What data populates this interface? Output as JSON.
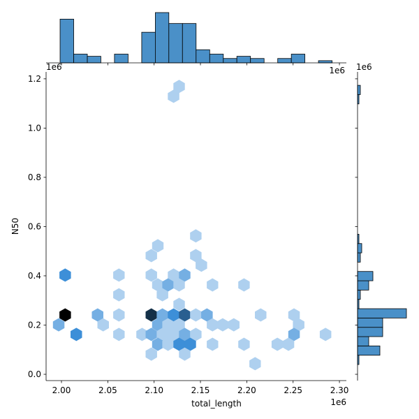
{
  "chart_data": {
    "type": "hexbin_joint",
    "xlabel": "total_length",
    "ylabel": "N50",
    "x_offset_label": "1e6",
    "y_offset_label": "1e6",
    "xlim": [
      1.9834,
      2.3075
    ],
    "ylim": [
      -0.0255,
      1.228
    ],
    "xticks": [
      {
        "value": 2.0,
        "label": "2.00"
      },
      2.05,
      {
        "value": 2.1,
        "label": "2.10"
      },
      2.15,
      {
        "value": 2.2,
        "label": "2.20"
      },
      2.25,
      {
        "value": 2.3,
        "label": "2.30"
      }
    ],
    "yticks": [
      {
        "value": 0.0,
        "label": "0.0"
      },
      0.2,
      0.4,
      0.6,
      0.8,
      {
        "value": 1.0,
        "label": "1.0"
      },
      1.2
    ],
    "color": "#4a90c8",
    "cmap": [
      "#e6f0fa",
      "#3d8fd8",
      "#000000"
    ],
    "count_max": 6,
    "hexes": [
      {
        "x": 2.127,
        "y": 1.169,
        "count": 1
      },
      {
        "x": 2.121,
        "y": 1.129,
        "count": 1
      },
      {
        "x": 2.145,
        "y": 0.562,
        "count": 1
      },
      {
        "x": 2.104,
        "y": 0.522,
        "count": 1
      },
      {
        "x": 2.145,
        "y": 0.482,
        "count": 1
      },
      {
        "x": 2.097,
        "y": 0.482,
        "count": 1
      },
      {
        "x": 2.151,
        "y": 0.443,
        "count": 1
      },
      {
        "x": 2.004,
        "y": 0.403,
        "count": 3
      },
      {
        "x": 2.062,
        "y": 0.403,
        "count": 1
      },
      {
        "x": 2.097,
        "y": 0.403,
        "count": 1
      },
      {
        "x": 2.121,
        "y": 0.403,
        "count": 1
      },
      {
        "x": 2.133,
        "y": 0.403,
        "count": 2
      },
      {
        "x": 2.104,
        "y": 0.363,
        "count": 1
      },
      {
        "x": 2.115,
        "y": 0.363,
        "count": 2
      },
      {
        "x": 2.127,
        "y": 0.363,
        "count": 1
      },
      {
        "x": 2.163,
        "y": 0.363,
        "count": 1
      },
      {
        "x": 2.197,
        "y": 0.363,
        "count": 1
      },
      {
        "x": 2.109,
        "y": 0.323,
        "count": 1
      },
      {
        "x": 2.062,
        "y": 0.323,
        "count": 1
      },
      {
        "x": 2.127,
        "y": 0.284,
        "count": 1
      },
      {
        "x": 2.004,
        "y": 0.241,
        "count": 6
      },
      {
        "x": 2.039,
        "y": 0.241,
        "count": 2
      },
      {
        "x": 2.062,
        "y": 0.241,
        "count": 1
      },
      {
        "x": 2.097,
        "y": 0.241,
        "count": 5
      },
      {
        "x": 2.109,
        "y": 0.241,
        "count": 2
      },
      {
        "x": 2.121,
        "y": 0.241,
        "count": 3
      },
      {
        "x": 2.133,
        "y": 0.241,
        "count": 4
      },
      {
        "x": 2.145,
        "y": 0.241,
        "count": 1
      },
      {
        "x": 2.157,
        "y": 0.241,
        "count": 2
      },
      {
        "x": 2.215,
        "y": 0.241,
        "count": 1
      },
      {
        "x": 2.251,
        "y": 0.241,
        "count": 1
      },
      {
        "x": 1.997,
        "y": 0.201,
        "count": 2
      },
      {
        "x": 2.045,
        "y": 0.201,
        "count": 1
      },
      {
        "x": 2.104,
        "y": 0.201,
        "count": 2
      },
      {
        "x": 2.115,
        "y": 0.201,
        "count": 1
      },
      {
        "x": 2.127,
        "y": 0.201,
        "count": 1
      },
      {
        "x": 2.163,
        "y": 0.201,
        "count": 1
      },
      {
        "x": 2.174,
        "y": 0.201,
        "count": 1
      },
      {
        "x": 2.186,
        "y": 0.201,
        "count": 1
      },
      {
        "x": 2.256,
        "y": 0.201,
        "count": 1
      },
      {
        "x": 2.016,
        "y": 0.162,
        "count": 3
      },
      {
        "x": 2.062,
        "y": 0.162,
        "count": 1
      },
      {
        "x": 2.087,
        "y": 0.162,
        "count": 1
      },
      {
        "x": 2.097,
        "y": 0.162,
        "count": 2
      },
      {
        "x": 2.109,
        "y": 0.162,
        "count": 1
      },
      {
        "x": 2.121,
        "y": 0.162,
        "count": 1
      },
      {
        "x": 2.133,
        "y": 0.162,
        "count": 2
      },
      {
        "x": 2.145,
        "y": 0.162,
        "count": 1
      },
      {
        "x": 2.251,
        "y": 0.162,
        "count": 2
      },
      {
        "x": 2.285,
        "y": 0.162,
        "count": 1
      },
      {
        "x": 2.104,
        "y": 0.122,
        "count": 2
      },
      {
        "x": 2.115,
        "y": 0.122,
        "count": 1
      },
      {
        "x": 2.127,
        "y": 0.122,
        "count": 3
      },
      {
        "x": 2.139,
        "y": 0.122,
        "count": 3
      },
      {
        "x": 2.163,
        "y": 0.122,
        "count": 1
      },
      {
        "x": 2.197,
        "y": 0.122,
        "count": 1
      },
      {
        "x": 2.233,
        "y": 0.122,
        "count": 1
      },
      {
        "x": 2.245,
        "y": 0.122,
        "count": 1
      },
      {
        "x": 2.097,
        "y": 0.082,
        "count": 1
      },
      {
        "x": 2.133,
        "y": 0.082,
        "count": 1
      },
      {
        "x": 2.209,
        "y": 0.043,
        "count": 1
      }
    ],
    "x_hist": {
      "bins": [
        1.9985,
        2.0132,
        2.0279,
        2.0425,
        2.0572,
        2.0719,
        2.0866,
        2.1013,
        2.1159,
        2.1306,
        2.1453,
        2.16,
        2.1747,
        2.1893,
        2.204,
        2.2187,
        2.2334,
        2.2481,
        2.2627,
        2.2774,
        2.2921
      ],
      "counts": [
        20,
        4,
        3,
        0,
        4,
        0,
        14,
        23,
        18,
        18,
        6,
        4,
        2,
        3,
        2,
        0,
        2,
        4,
        0,
        1
      ]
    },
    "y_hist": {
      "bins": [
        0.0397,
        0.0775,
        0.1153,
        0.1531,
        0.1909,
        0.2287,
        0.2665,
        0.3043,
        0.3421,
        0.3799,
        0.4177,
        0.4555,
        0.4933,
        0.5311,
        0.5689,
        0.6067,
        0.6445,
        0.6823,
        0.7201,
        0.7579,
        0.7957,
        0.8335,
        0.8713,
        0.9091,
        0.9469,
        0.9847,
        1.0225,
        1.0603,
        1.0981,
        1.1359,
        1.1737
      ],
      "counts": [
        1,
        16,
        8,
        18,
        18,
        35,
        1,
        2,
        8,
        11,
        0,
        2,
        3,
        1,
        0,
        0,
        0,
        0,
        0,
        0,
        0,
        0,
        0,
        0,
        0,
        0,
        0,
        0,
        1,
        2
      ]
    }
  }
}
